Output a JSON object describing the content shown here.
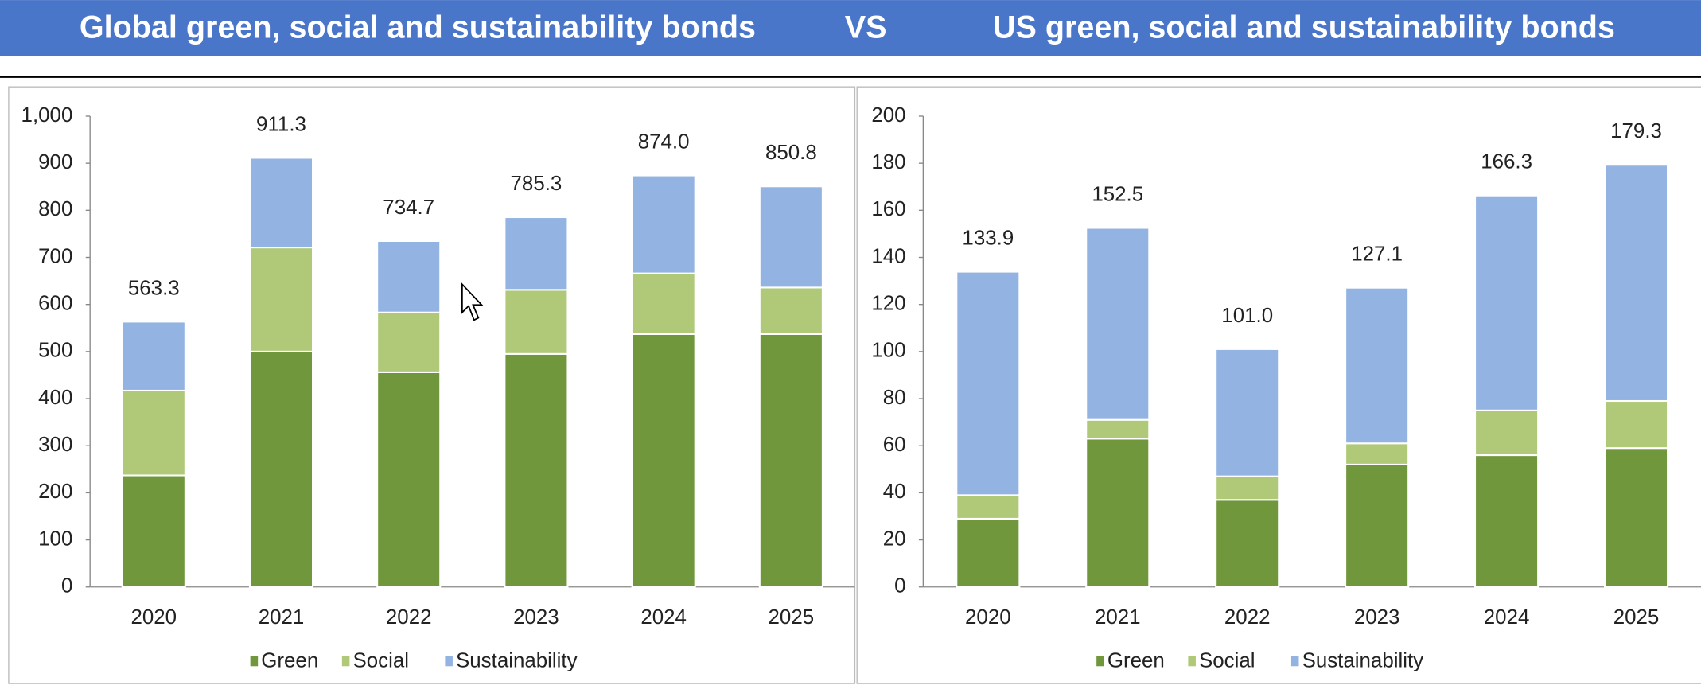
{
  "header": {
    "left": "Global green, social and sustainability bonds",
    "vs": "VS",
    "right": "US green, social and sustainability bonds"
  },
  "chart_data": [
    {
      "type": "stacked_bar",
      "categories": [
        "2020",
        "2021",
        "2022",
        "2023",
        "2024",
        "2025"
      ],
      "series": [
        {
          "name": "Green",
          "color": "#70973b",
          "values": [
            237,
            500,
            456,
            495,
            537,
            537
          ]
        },
        {
          "name": "Social",
          "color": "#afc978",
          "values": [
            180,
            221,
            127,
            136,
            129,
            99
          ]
        },
        {
          "name": "Sustainability",
          "color": "#93b4e2",
          "values": [
            146.3,
            190.3,
            151.7,
            154.3,
            208,
            214.8
          ]
        }
      ],
      "totals": [
        563.3,
        911.3,
        734.7,
        785.3,
        874.0,
        850.8
      ],
      "total_labels": [
        "563.3",
        "911.3",
        "734.7",
        "785.3",
        "874.0",
        "850.8"
      ],
      "ylim": [
        0,
        1000
      ],
      "yticks": [
        0,
        100,
        200,
        300,
        400,
        500,
        600,
        700,
        800,
        900,
        {
          "value": 1000,
          "label": "1,000"
        }
      ],
      "legend": "bottom"
    },
    {
      "type": "stacked_bar",
      "categories": [
        "2020",
        "2021",
        "2022",
        "2023",
        "2024",
        "2025"
      ],
      "series": [
        {
          "name": "Green",
          "color": "#70973b",
          "values": [
            29,
            63,
            37,
            52,
            56,
            59
          ]
        },
        {
          "name": "Social",
          "color": "#afc978",
          "values": [
            10,
            8,
            10,
            9,
            19,
            20
          ]
        },
        {
          "name": "Sustainability",
          "color": "#93b4e2",
          "values": [
            94.9,
            81.5,
            54,
            66.1,
            91.3,
            100.3
          ]
        }
      ],
      "totals": [
        133.9,
        152.5,
        101.0,
        127.1,
        166.3,
        179.3
      ],
      "total_labels": [
        "133.9",
        "152.5",
        "101.0",
        "127.1",
        "166.3",
        "179.3"
      ],
      "ylim": [
        0,
        200
      ],
      "yticks": [
        0,
        20,
        40,
        60,
        80,
        100,
        120,
        140,
        160,
        180,
        200
      ],
      "legend": "bottom"
    }
  ]
}
